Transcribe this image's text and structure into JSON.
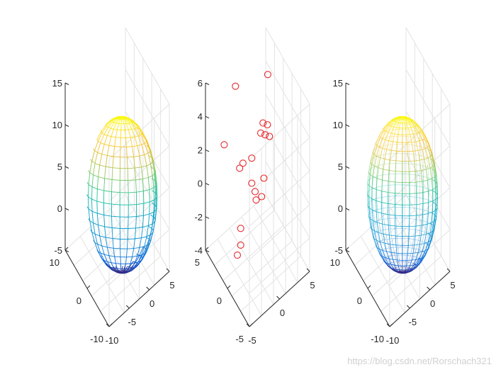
{
  "chart_data": [
    {
      "type": "surface",
      "description": "3D ellipsoid wireframe mesh (parula colormap)",
      "zlim": [
        -5,
        15
      ],
      "xlim": [
        -10,
        10
      ],
      "ylim": [
        -10,
        5
      ],
      "z_ticks": [
        "15",
        "10",
        "5",
        "0",
        "-5"
      ],
      "x_ticks": [
        "10",
        "0",
        "-10"
      ],
      "y_ticks": [
        "5",
        "0",
        "-5",
        "-10"
      ],
      "center": [
        0,
        0,
        5
      ],
      "radii": [
        4,
        4,
        9
      ]
    },
    {
      "type": "scatter",
      "description": "3D scatter of points, red open circles",
      "marker_color": "#e8262a",
      "zlim": [
        -4,
        6
      ],
      "z_ticks": [
        "6",
        "4",
        "2",
        "0",
        "-2",
        "-4"
      ],
      "x_ticks": [
        "5",
        "0",
        "-5"
      ],
      "y_ticks": [
        "5",
        "0",
        "-5"
      ],
      "xlim": [
        -5,
        5
      ],
      "ylim": [
        -5,
        5
      ],
      "points": [
        {
          "x": 4.0,
          "y": -2.5,
          "z": 6.5
        },
        {
          "x": -1.0,
          "y": -2.0,
          "z": 5.8
        },
        {
          "x": 2.5,
          "y": 0.0,
          "z": 3.6
        },
        {
          "x": 3.0,
          "y": 0.5,
          "z": 3.5
        },
        {
          "x": 2.0,
          "y": 0.5,
          "z": 3.0
        },
        {
          "x": 2.5,
          "y": 1.0,
          "z": 2.9
        },
        {
          "x": 3.0,
          "y": 1.5,
          "z": 2.8
        },
        {
          "x": -3.0,
          "y": -1.0,
          "z": 2.3
        },
        {
          "x": 0.5,
          "y": 1.0,
          "z": 1.5
        },
        {
          "x": -0.5,
          "y": 0.0,
          "z": 1.2
        },
        {
          "x": -1.0,
          "y": 0.0,
          "z": 0.9
        },
        {
          "x": 2.0,
          "y": 2.0,
          "z": 0.3
        },
        {
          "x": 0.5,
          "y": 1.0,
          "z": 0.0
        },
        {
          "x": 1.0,
          "y": 1.0,
          "z": -0.5
        },
        {
          "x": 1.5,
          "y": 2.5,
          "z": -0.8
        },
        {
          "x": 1.0,
          "y": 1.5,
          "z": -1.0
        },
        {
          "x": -1.0,
          "y": 0.5,
          "z": -2.7
        },
        {
          "x": -1.0,
          "y": 0.5,
          "z": -3.7
        },
        {
          "x": -1.5,
          "y": 0.5,
          "z": -4.3
        }
      ]
    },
    {
      "type": "surface",
      "description": "3D ellipsoid wireframe mesh (parula colormap)",
      "zlim": [
        -5,
        15
      ],
      "xlim": [
        -10,
        10
      ],
      "ylim": [
        -10,
        5
      ],
      "z_ticks": [
        "15",
        "10",
        "5",
        "0",
        "-5"
      ],
      "x_ticks": [
        "10",
        "0",
        "-10"
      ],
      "y_ticks": [
        "5",
        "0",
        "-5",
        "-10"
      ],
      "center": [
        0,
        0,
        5
      ],
      "radii": [
        4,
        4,
        9
      ]
    }
  ],
  "watermark": "https://blog.csdn.net/Rorschach321"
}
